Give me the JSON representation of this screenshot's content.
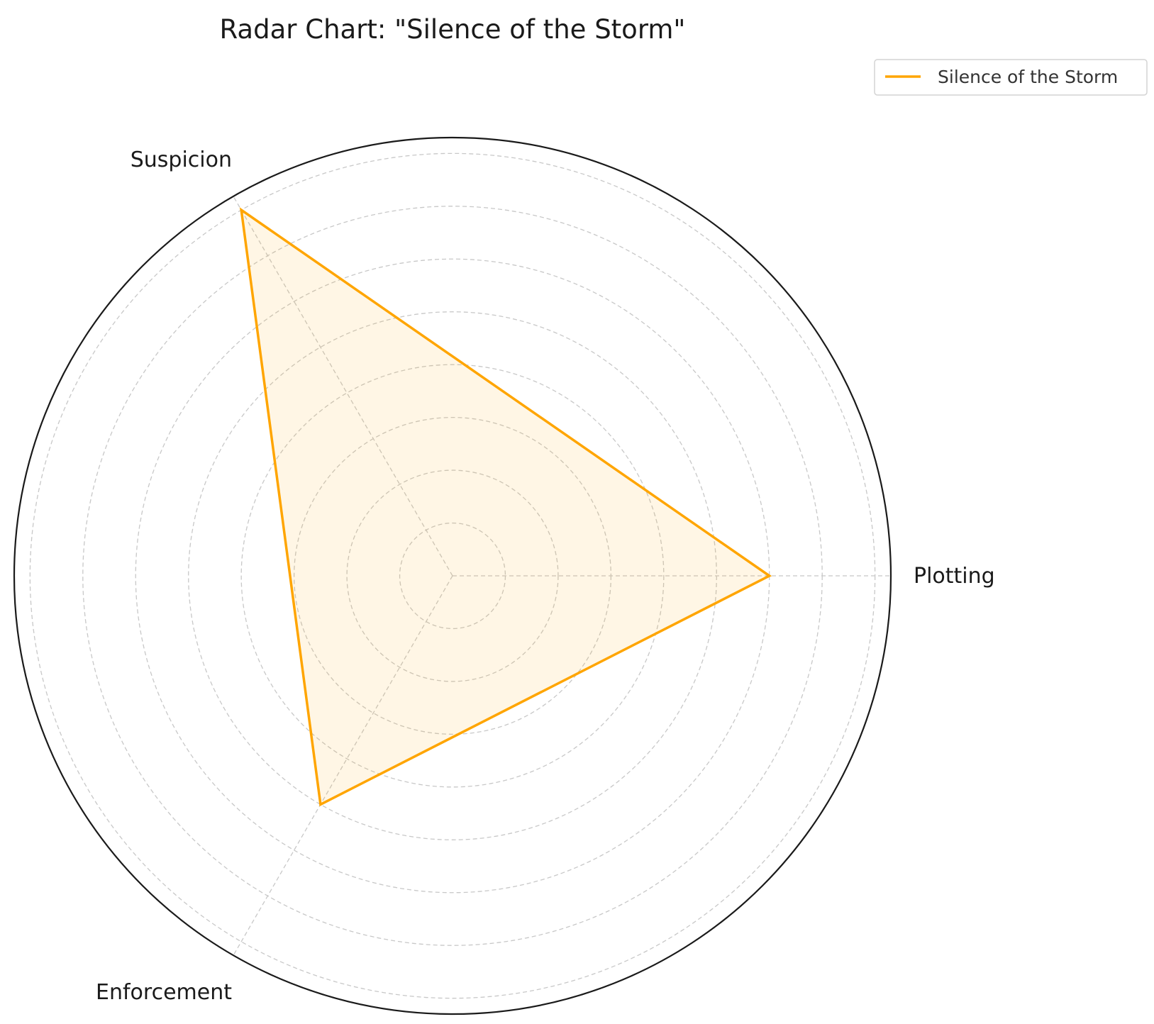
{
  "chart_data": {
    "type": "radar",
    "title": "Radar Chart: \"Silence of the Storm\"",
    "categories": [
      "Plotting",
      "Suspicion",
      "Enforcement"
    ],
    "series": [
      {
        "name": "Silence of the Storm",
        "values": [
          6,
          8,
          5
        ],
        "color": "#FFA500"
      }
    ],
    "rlim": [
      0,
      8.3
    ],
    "grid_step": 1,
    "grid": true,
    "tick_labels_shown": false,
    "legend_position": "top-right"
  }
}
